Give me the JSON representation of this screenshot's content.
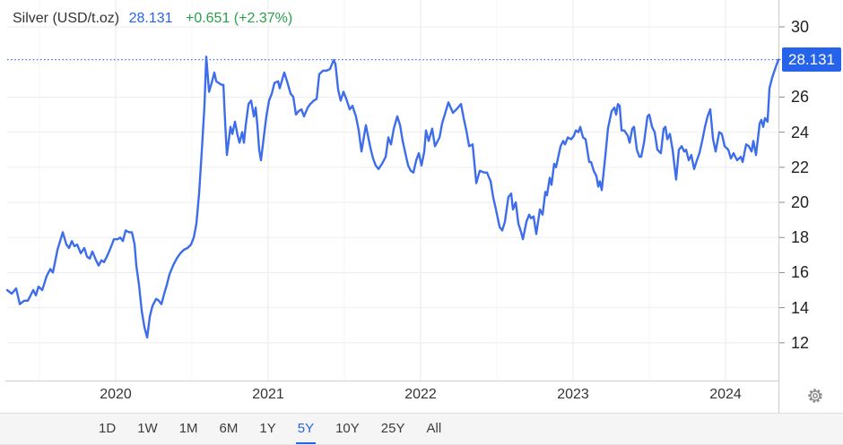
{
  "header": {
    "symbol": "Silver (USD/t.oz)",
    "price": "28.131",
    "change": "+0.651 (+2.37%)"
  },
  "colors": {
    "line_blue": "#3d6dea",
    "accent_blue": "#2563eb",
    "change_green": "#28a049",
    "grid_year": "#e9e9e9",
    "grid_half_year": "#f4f4f4",
    "grid_horizontal": "#ededed",
    "axis_line": "#cccccc",
    "tick_mark": "#8a8a8a",
    "gear_gray": "#8a8a8a"
  },
  "y_axis": {
    "ticks": [
      30,
      26,
      24,
      22,
      20,
      18,
      16,
      14,
      12
    ],
    "price_label": "28.131"
  },
  "x_axis": {
    "ticks": [
      "2020",
      "2021",
      "2022",
      "2023",
      "2024"
    ]
  },
  "toolbar": {
    "items": [
      "1D",
      "1W",
      "1M",
      "6M",
      "1Y",
      "5Y",
      "10Y",
      "25Y",
      "All"
    ],
    "selected": "5Y"
  },
  "icons": {
    "settings": "gear-icon"
  },
  "chart_data": {
    "type": "line",
    "title": "Silver (USD/t.oz)",
    "series_name": "Silver spot price, USD per troy ounce",
    "current_price": 28.131,
    "change_abs": "+0.651",
    "change_pct": "+2.37%",
    "dotted_line_at": 28.131,
    "x_unit": "decimal year",
    "xlim": [
      2019.288,
      2024.347
    ],
    "ylim": [
      9.85,
      31.53
    ],
    "x_gridlines": [
      2019.5,
      2020,
      2020.5,
      2021,
      2021.5,
      2022,
      2022.5,
      2023,
      2023.5,
      2024
    ],
    "legend": false,
    "grid": true,
    "points": [
      [
        2019.288,
        15.0
      ],
      [
        2019.318,
        14.8
      ],
      [
        2019.347,
        15.1
      ],
      [
        2019.371,
        14.2
      ],
      [
        2019.4,
        14.4
      ],
      [
        2019.424,
        14.4
      ],
      [
        2019.459,
        15.0
      ],
      [
        2019.476,
        14.7
      ],
      [
        2019.494,
        15.2
      ],
      [
        2019.518,
        15.0
      ],
      [
        2019.547,
        15.8
      ],
      [
        2019.571,
        16.2
      ],
      [
        2019.588,
        16.0
      ],
      [
        2019.618,
        17.3
      ],
      [
        2019.653,
        18.3
      ],
      [
        2019.676,
        17.6
      ],
      [
        2019.694,
        17.4
      ],
      [
        2019.712,
        17.8
      ],
      [
        2019.729,
        17.5
      ],
      [
        2019.747,
        17.6
      ],
      [
        2019.771,
        17.1
      ],
      [
        2019.794,
        17.4
      ],
      [
        2019.812,
        16.9
      ],
      [
        2019.829,
        16.8
      ],
      [
        2019.847,
        17.2
      ],
      [
        2019.871,
        16.7
      ],
      [
        2019.888,
        16.4
      ],
      [
        2019.906,
        16.7
      ],
      [
        2019.924,
        16.6
      ],
      [
        2019.947,
        17.0
      ],
      [
        2019.971,
        17.5
      ],
      [
        2019.988,
        17.9
      ],
      [
        2020.012,
        17.9
      ],
      [
        2020.029,
        18.0
      ],
      [
        2020.047,
        17.8
      ],
      [
        2020.065,
        18.4
      ],
      [
        2020.088,
        18.3
      ],
      [
        2020.106,
        18.3
      ],
      [
        2020.124,
        17.6
      ],
      [
        2020.135,
        16.4
      ],
      [
        2020.153,
        15.3
      ],
      [
        2020.171,
        13.8
      ],
      [
        2020.188,
        12.9
      ],
      [
        2020.206,
        12.3
      ],
      [
        2020.224,
        13.5
      ],
      [
        2020.241,
        14.1
      ],
      [
        2020.265,
        14.5
      ],
      [
        2020.282,
        14.4
      ],
      [
        2020.3,
        14.2
      ],
      [
        2020.318,
        14.8
      ],
      [
        2020.335,
        15.3
      ],
      [
        2020.353,
        15.9
      ],
      [
        2020.376,
        16.4
      ],
      [
        2020.4,
        16.8
      ],
      [
        2020.424,
        17.1
      ],
      [
        2020.447,
        17.3
      ],
      [
        2020.471,
        17.4
      ],
      [
        2020.494,
        17.6
      ],
      [
        2020.512,
        18.0
      ],
      [
        2020.529,
        18.8
      ],
      [
        2020.547,
        20.5
      ],
      [
        2020.565,
        23.0
      ],
      [
        2020.582,
        25.5
      ],
      [
        2020.594,
        28.3
      ],
      [
        2020.612,
        26.3
      ],
      [
        2020.629,
        26.8
      ],
      [
        2020.647,
        27.4
      ],
      [
        2020.659,
        26.9
      ],
      [
        2020.676,
        26.8
      ],
      [
        2020.694,
        26.7
      ],
      [
        2020.706,
        26.7
      ],
      [
        2020.718,
        24.5
      ],
      [
        2020.729,
        22.7
      ],
      [
        2020.741,
        23.5
      ],
      [
        2020.753,
        24.3
      ],
      [
        2020.765,
        23.9
      ],
      [
        2020.782,
        24.6
      ],
      [
        2020.8,
        23.8
      ],
      [
        2020.812,
        23.4
      ],
      [
        2020.829,
        24.0
      ],
      [
        2020.841,
        23.4
      ],
      [
        2020.853,
        24.4
      ],
      [
        2020.871,
        25.6
      ],
      [
        2020.888,
        25.8
      ],
      [
        2020.906,
        24.9
      ],
      [
        2020.918,
        25.4
      ],
      [
        2020.929,
        24.4
      ],
      [
        2020.941,
        23.0
      ],
      [
        2020.953,
        22.4
      ],
      [
        2020.971,
        23.7
      ],
      [
        2020.988,
        24.9
      ],
      [
        2021.006,
        25.8
      ],
      [
        2021.024,
        26.2
      ],
      [
        2021.041,
        26.8
      ],
      [
        2021.065,
        26.9
      ],
      [
        2021.076,
        26.5
      ],
      [
        2021.106,
        27.4
      ],
      [
        2021.124,
        26.9
      ],
      [
        2021.147,
        26.2
      ],
      [
        2021.165,
        26.0
      ],
      [
        2021.182,
        25.0
      ],
      [
        2021.2,
        25.2
      ],
      [
        2021.218,
        25.3
      ],
      [
        2021.235,
        24.9
      ],
      [
        2021.259,
        25.4
      ],
      [
        2021.276,
        25.6
      ],
      [
        2021.3,
        25.8
      ],
      [
        2021.318,
        25.9
      ],
      [
        2021.335,
        27.3
      ],
      [
        2021.359,
        27.5
      ],
      [
        2021.382,
        27.5
      ],
      [
        2021.406,
        27.6
      ],
      [
        2021.429,
        28.1
      ],
      [
        2021.441,
        27.9
      ],
      [
        2021.459,
        26.4
      ],
      [
        2021.476,
        25.8
      ],
      [
        2021.494,
        26.3
      ],
      [
        2021.512,
        25.9
      ],
      [
        2021.535,
        25.3
      ],
      [
        2021.553,
        25.5
      ],
      [
        2021.576,
        24.9
      ],
      [
        2021.594,
        24.1
      ],
      [
        2021.612,
        22.9
      ],
      [
        2021.629,
        23.8
      ],
      [
        2021.641,
        24.4
      ],
      [
        2021.659,
        23.6
      ],
      [
        2021.671,
        23.1
      ],
      [
        2021.688,
        22.5
      ],
      [
        2021.706,
        22.1
      ],
      [
        2021.724,
        21.9
      ],
      [
        2021.747,
        22.2
      ],
      [
        2021.771,
        22.6
      ],
      [
        2021.788,
        23.7
      ],
      [
        2021.806,
        23.3
      ],
      [
        2021.824,
        24.2
      ],
      [
        2021.847,
        24.9
      ],
      [
        2021.865,
        24.4
      ],
      [
        2021.882,
        23.5
      ],
      [
        2021.9,
        22.8
      ],
      [
        2021.918,
        22.1
      ],
      [
        2021.935,
        21.8
      ],
      [
        2021.953,
        21.7
      ],
      [
        2021.971,
        22.4
      ],
      [
        2021.988,
        22.8
      ],
      [
        2022.006,
        22.1
      ],
      [
        2022.024,
        22.9
      ],
      [
        2022.035,
        24.1
      ],
      [
        2022.053,
        23.5
      ],
      [
        2022.076,
        24.2
      ],
      [
        2022.094,
        23.2
      ],
      [
        2022.124,
        23.7
      ],
      [
        2022.141,
        24.5
      ],
      [
        2022.165,
        25.2
      ],
      [
        2022.182,
        25.7
      ],
      [
        2022.212,
        25.1
      ],
      [
        2022.235,
        25.3
      ],
      [
        2022.265,
        25.6
      ],
      [
        2022.282,
        24.8
      ],
      [
        2022.3,
        24.1
      ],
      [
        2022.318,
        23.2
      ],
      [
        2022.341,
        23.3
      ],
      [
        2022.365,
        21.1
      ],
      [
        2022.388,
        21.8
      ],
      [
        2022.418,
        21.7
      ],
      [
        2022.435,
        21.7
      ],
      [
        2022.459,
        21.2
      ],
      [
        2022.476,
        20.3
      ],
      [
        2022.494,
        19.6
      ],
      [
        2022.518,
        18.6
      ],
      [
        2022.535,
        18.4
      ],
      [
        2022.553,
        18.9
      ],
      [
        2022.576,
        20.3
      ],
      [
        2022.594,
        20.5
      ],
      [
        2022.606,
        19.6
      ],
      [
        2022.624,
        20.0
      ],
      [
        2022.641,
        18.8
      ],
      [
        2022.659,
        18.3
      ],
      [
        2022.671,
        17.9
      ],
      [
        2022.694,
        18.9
      ],
      [
        2022.712,
        19.3
      ],
      [
        2022.724,
        19.1
      ],
      [
        2022.741,
        19.2
      ],
      [
        2022.759,
        18.2
      ],
      [
        2022.782,
        19.6
      ],
      [
        2022.8,
        19.3
      ],
      [
        2022.818,
        20.6
      ],
      [
        2022.829,
        20.4
      ],
      [
        2022.847,
        21.4
      ],
      [
        2022.859,
        21.0
      ],
      [
        2022.876,
        22.2
      ],
      [
        2022.888,
        22.0
      ],
      [
        2022.918,
        23.2
      ],
      [
        2022.935,
        23.5
      ],
      [
        2022.947,
        23.3
      ],
      [
        2022.965,
        23.7
      ],
      [
        2022.988,
        23.6
      ],
      [
        2023.006,
        23.8
      ],
      [
        2023.018,
        24.1
      ],
      [
        2023.035,
        24.0
      ],
      [
        2023.047,
        24.3
      ],
      [
        2023.065,
        23.7
      ],
      [
        2023.082,
        23.6
      ],
      [
        2023.106,
        22.3
      ],
      [
        2023.118,
        22.3
      ],
      [
        2023.135,
        21.8
      ],
      [
        2023.153,
        21.5
      ],
      [
        2023.165,
        20.9
      ],
      [
        2023.176,
        21.2
      ],
      [
        2023.188,
        20.7
      ],
      [
        2023.212,
        22.7
      ],
      [
        2023.229,
        24.2
      ],
      [
        2023.253,
        25.2
      ],
      [
        2023.271,
        25.4
      ],
      [
        2023.282,
        25.0
      ],
      [
        2023.294,
        25.6
      ],
      [
        2023.306,
        25.5
      ],
      [
        2023.318,
        24.1
      ],
      [
        2023.335,
        24.1
      ],
      [
        2023.359,
        23.8
      ],
      [
        2023.371,
        23.4
      ],
      [
        2023.388,
        24.2
      ],
      [
        2023.4,
        24.3
      ],
      [
        2023.418,
        23.0
      ],
      [
        2023.435,
        22.6
      ],
      [
        2023.447,
        22.6
      ],
      [
        2023.465,
        23.4
      ],
      [
        2023.488,
        24.9
      ],
      [
        2023.5,
        25.0
      ],
      [
        2023.518,
        24.3
      ],
      [
        2023.535,
        24.0
      ],
      [
        2023.553,
        23.0
      ],
      [
        2023.576,
        22.8
      ],
      [
        2023.594,
        24.2
      ],
      [
        2023.606,
        24.3
      ],
      [
        2023.618,
        23.6
      ],
      [
        2023.635,
        23.9
      ],
      [
        2023.653,
        23.0
      ],
      [
        2023.676,
        21.3
      ],
      [
        2023.694,
        23.0
      ],
      [
        2023.712,
        23.2
      ],
      [
        2023.729,
        22.9
      ],
      [
        2023.741,
        23.0
      ],
      [
        2023.759,
        22.4
      ],
      [
        2023.776,
        22.7
      ],
      [
        2023.794,
        21.9
      ],
      [
        2023.812,
        22.4
      ],
      [
        2023.829,
        22.8
      ],
      [
        2023.847,
        23.5
      ],
      [
        2023.865,
        24.3
      ],
      [
        2023.882,
        24.9
      ],
      [
        2023.9,
        25.3
      ],
      [
        2023.918,
        23.6
      ],
      [
        2023.935,
        22.9
      ],
      [
        2023.959,
        24.0
      ],
      [
        2023.976,
        23.9
      ],
      [
        2023.994,
        23.2
      ],
      [
        2024.018,
        23.0
      ],
      [
        2024.035,
        22.5
      ],
      [
        2024.053,
        22.8
      ],
      [
        2024.076,
        22.4
      ],
      [
        2024.1,
        22.6
      ],
      [
        2024.112,
        22.3
      ],
      [
        2024.135,
        23.3
      ],
      [
        2024.153,
        23.2
      ],
      [
        2024.171,
        22.9
      ],
      [
        2024.182,
        23.5
      ],
      [
        2024.2,
        22.7
      ],
      [
        2024.224,
        24.5
      ],
      [
        2024.235,
        24.7
      ],
      [
        2024.247,
        24.3
      ],
      [
        2024.259,
        24.8
      ],
      [
        2024.276,
        24.6
      ],
      [
        2024.288,
        26.5
      ],
      [
        2024.306,
        27.1
      ],
      [
        2024.329,
        27.7
      ],
      [
        2024.347,
        28.131
      ]
    ]
  }
}
